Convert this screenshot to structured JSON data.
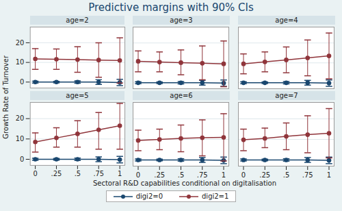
{
  "chart_data": {
    "type": "line",
    "title": "Predictive margins with 90% CIs",
    "x_label": "Sectoral R&D capabilities conditional on digitalisation",
    "y_label": "Growth Rate of Turnover",
    "x": [
      0,
      0.25,
      0.5,
      0.75,
      1
    ],
    "xlim": [
      -0.06,
      1.06
    ],
    "xticks": [
      0,
      {
        "value": 0.25,
        "label": ".25"
      },
      {
        "value": 0.5,
        "label": ".5"
      },
      {
        "value": 0.75,
        "label": ".75"
      },
      1
    ],
    "ylim": [
      -3,
      28
    ],
    "yticks": [
      0,
      10,
      20
    ],
    "grid": true,
    "legend": "bottom",
    "marker": "circle",
    "panels": [
      {
        "title": "age=2",
        "series": [
          {
            "name": "digi2=0",
            "color": "#1a476f",
            "values": [
              0,
              0,
              0,
              0,
              -0.2
            ],
            "ci_lower": [
              -0.5,
              -0.4,
              -0.6,
              -1.2,
              -1.8
            ],
            "ci_upper": [
              0.5,
              0.4,
              0.6,
              1.2,
              1.4
            ]
          },
          {
            "name": "digi2=1",
            "color": "#90353b",
            "values": [
              11.8,
              11.6,
              11.4,
              11.2,
              11.0
            ],
            "ci_lower": [
              6.5,
              6.5,
              5,
              2.5,
              -0.5
            ],
            "ci_upper": [
              17,
              16.8,
              18,
              20,
              22.5
            ]
          }
        ]
      },
      {
        "title": "age=3",
        "series": [
          {
            "name": "digi2=0",
            "color": "#1a476f",
            "values": [
              0,
              0,
              0,
              0,
              -0.2
            ],
            "ci_lower": [
              -0.5,
              -0.4,
              -0.6,
              -1.2,
              -1.8
            ],
            "ci_upper": [
              0.5,
              0.4,
              0.6,
              1.2,
              1.4
            ]
          },
          {
            "name": "digi2=1",
            "color": "#90353b",
            "values": [
              10.8,
              10.4,
              10.1,
              9.8,
              9.5
            ],
            "ci_lower": [
              5.5,
              5.5,
              4,
              1.5,
              -2
            ],
            "ci_upper": [
              16,
              15.5,
              16.5,
              18.5,
              21
            ]
          }
        ]
      },
      {
        "title": "age=4",
        "series": [
          {
            "name": "digi2=0",
            "color": "#1a476f",
            "values": [
              0,
              0,
              0,
              0,
              -0.2
            ],
            "ci_lower": [
              -0.5,
              -0.4,
              -0.6,
              -1.2,
              -1.8
            ],
            "ci_upper": [
              0.5,
              0.4,
              0.6,
              1.2,
              1.4
            ]
          },
          {
            "name": "digi2=1",
            "color": "#90353b",
            "values": [
              9.5,
              10.5,
              11.5,
              12.5,
              13.5
            ],
            "ci_lower": [
              4.5,
              5.5,
              5,
              3.5,
              2
            ],
            "ci_upper": [
              14.5,
              15.5,
              18,
              21.5,
              25
            ]
          }
        ]
      },
      {
        "title": "age=5",
        "series": [
          {
            "name": "digi2=0",
            "color": "#1a476f",
            "values": [
              0,
              0,
              0,
              0,
              -0.2
            ],
            "ci_lower": [
              -0.5,
              -0.4,
              -0.6,
              -1.2,
              -1.8
            ],
            "ci_upper": [
              0.5,
              0.4,
              0.6,
              1.2,
              1.4
            ]
          },
          {
            "name": "digi2=1",
            "color": "#90353b",
            "values": [
              8.5,
              10.5,
              12.5,
              14.5,
              16.5
            ],
            "ci_lower": [
              3.5,
              6,
              6,
              5,
              5
            ],
            "ci_upper": [
              13,
              15.5,
              19,
              23,
              27.5
            ]
          }
        ]
      },
      {
        "title": "age=6",
        "series": [
          {
            "name": "digi2=0",
            "color": "#1a476f",
            "values": [
              0,
              0,
              0,
              0,
              -0.2
            ],
            "ci_lower": [
              -0.5,
              -0.4,
              -0.6,
              -1.2,
              -1.8
            ],
            "ci_upper": [
              0.5,
              0.4,
              0.6,
              1.2,
              1.4
            ]
          },
          {
            "name": "digi2=1",
            "color": "#90353b",
            "values": [
              9.5,
              10,
              10.5,
              10.8,
              11
            ],
            "ci_lower": [
              4.5,
              5,
              4,
              2,
              -0.5
            ],
            "ci_upper": [
              14.5,
              15,
              17,
              19.5,
              22.5
            ]
          }
        ]
      },
      {
        "title": "age=7",
        "series": [
          {
            "name": "digi2=0",
            "color": "#1a476f",
            "values": [
              0,
              0,
              0,
              0,
              -0.2
            ],
            "ci_lower": [
              -0.5,
              -0.4,
              -0.6,
              -1.2,
              -1.8
            ],
            "ci_upper": [
              0.5,
              0.4,
              0.6,
              1.2,
              1.4
            ]
          },
          {
            "name": "digi2=1",
            "color": "#90353b",
            "values": [
              9.8,
              10.5,
              11.5,
              12.3,
              13
            ],
            "ci_lower": [
              4.5,
              6,
              5,
              3.5,
              1
            ],
            "ci_upper": [
              15,
              15.5,
              18,
              21.5,
              25
            ]
          }
        ]
      }
    ]
  }
}
